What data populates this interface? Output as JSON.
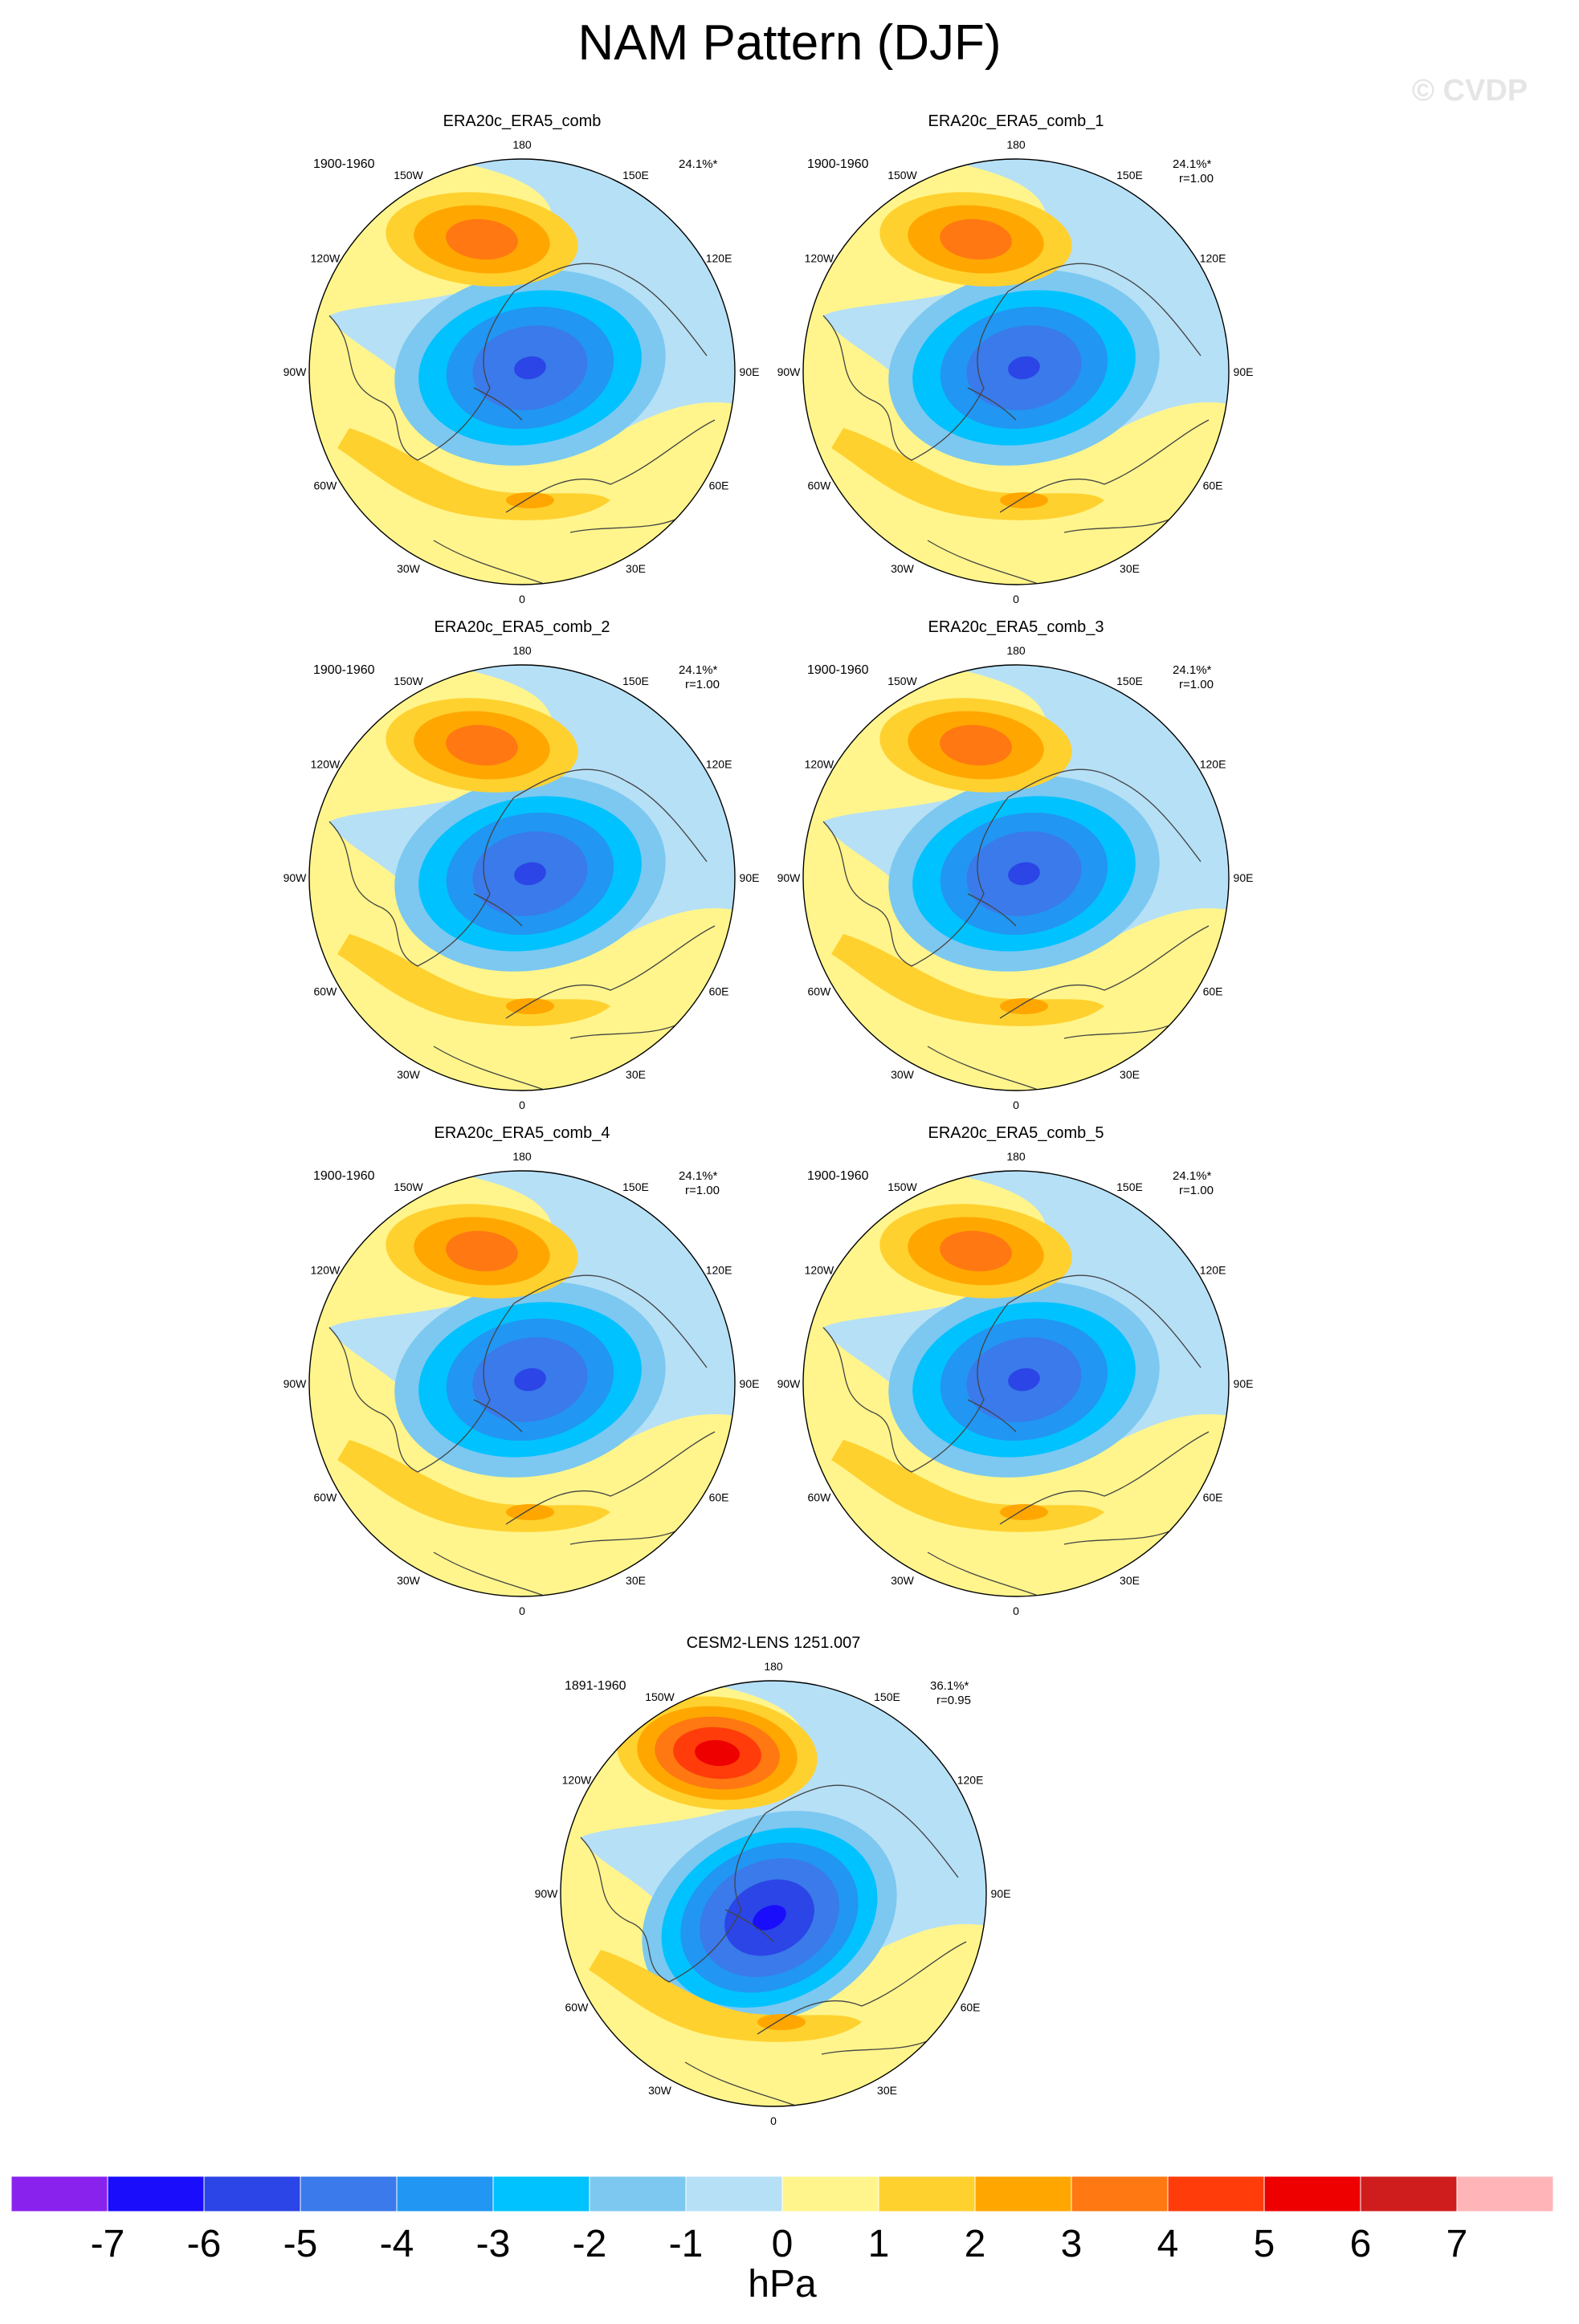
{
  "title": "NAM Pattern (DJF)",
  "watermark": "© CVDP",
  "longitude_labels": [
    "180",
    "150E",
    "120E",
    "90E",
    "60E",
    "30E",
    "0",
    "30W",
    "60W",
    "90W",
    "120W",
    "150W"
  ],
  "panels": [
    {
      "name": "ERA20c_ERA5_comb",
      "period": "1900-1960",
      "pct_variance": "24.1%*",
      "corr": ""
    },
    {
      "name": "ERA20c_ERA5_comb_1",
      "period": "1900-1960",
      "pct_variance": "24.1%*",
      "corr": "r=1.00"
    },
    {
      "name": "ERA20c_ERA5_comb_2",
      "period": "1900-1960",
      "pct_variance": "24.1%*",
      "corr": "r=1.00"
    },
    {
      "name": "ERA20c_ERA5_comb_3",
      "period": "1900-1960",
      "pct_variance": "24.1%*",
      "corr": "r=1.00"
    },
    {
      "name": "ERA20c_ERA5_comb_4",
      "period": "1900-1960",
      "pct_variance": "24.1%*",
      "corr": "r=1.00"
    },
    {
      "name": "ERA20c_ERA5_comb_5",
      "period": "1900-1960",
      "pct_variance": "24.1%*",
      "corr": "r=1.00"
    },
    {
      "name": "CESM2-LENS 1251.007",
      "period": "1891-1960",
      "pct_variance": "36.1%*",
      "corr": "r=0.95"
    }
  ],
  "colorbar": {
    "unit": "hPa",
    "ticks": [
      "-7",
      "-6",
      "-5",
      "-4",
      "-3",
      "-2",
      "-1",
      "0",
      "1",
      "2",
      "3",
      "4",
      "5",
      "6",
      "7"
    ],
    "colors": [
      "#8a22ee",
      "#1a0dfb",
      "#2b45e6",
      "#3a7aea",
      "#2196f3",
      "#00c2ff",
      "#7cc8f0",
      "#b6e0f6",
      "#fff58c",
      "#ffd12f",
      "#ffa700",
      "#ff7812",
      "#ff3c0a",
      "#ee0000",
      "#cf1d1d",
      "#ffb5b8"
    ]
  }
}
